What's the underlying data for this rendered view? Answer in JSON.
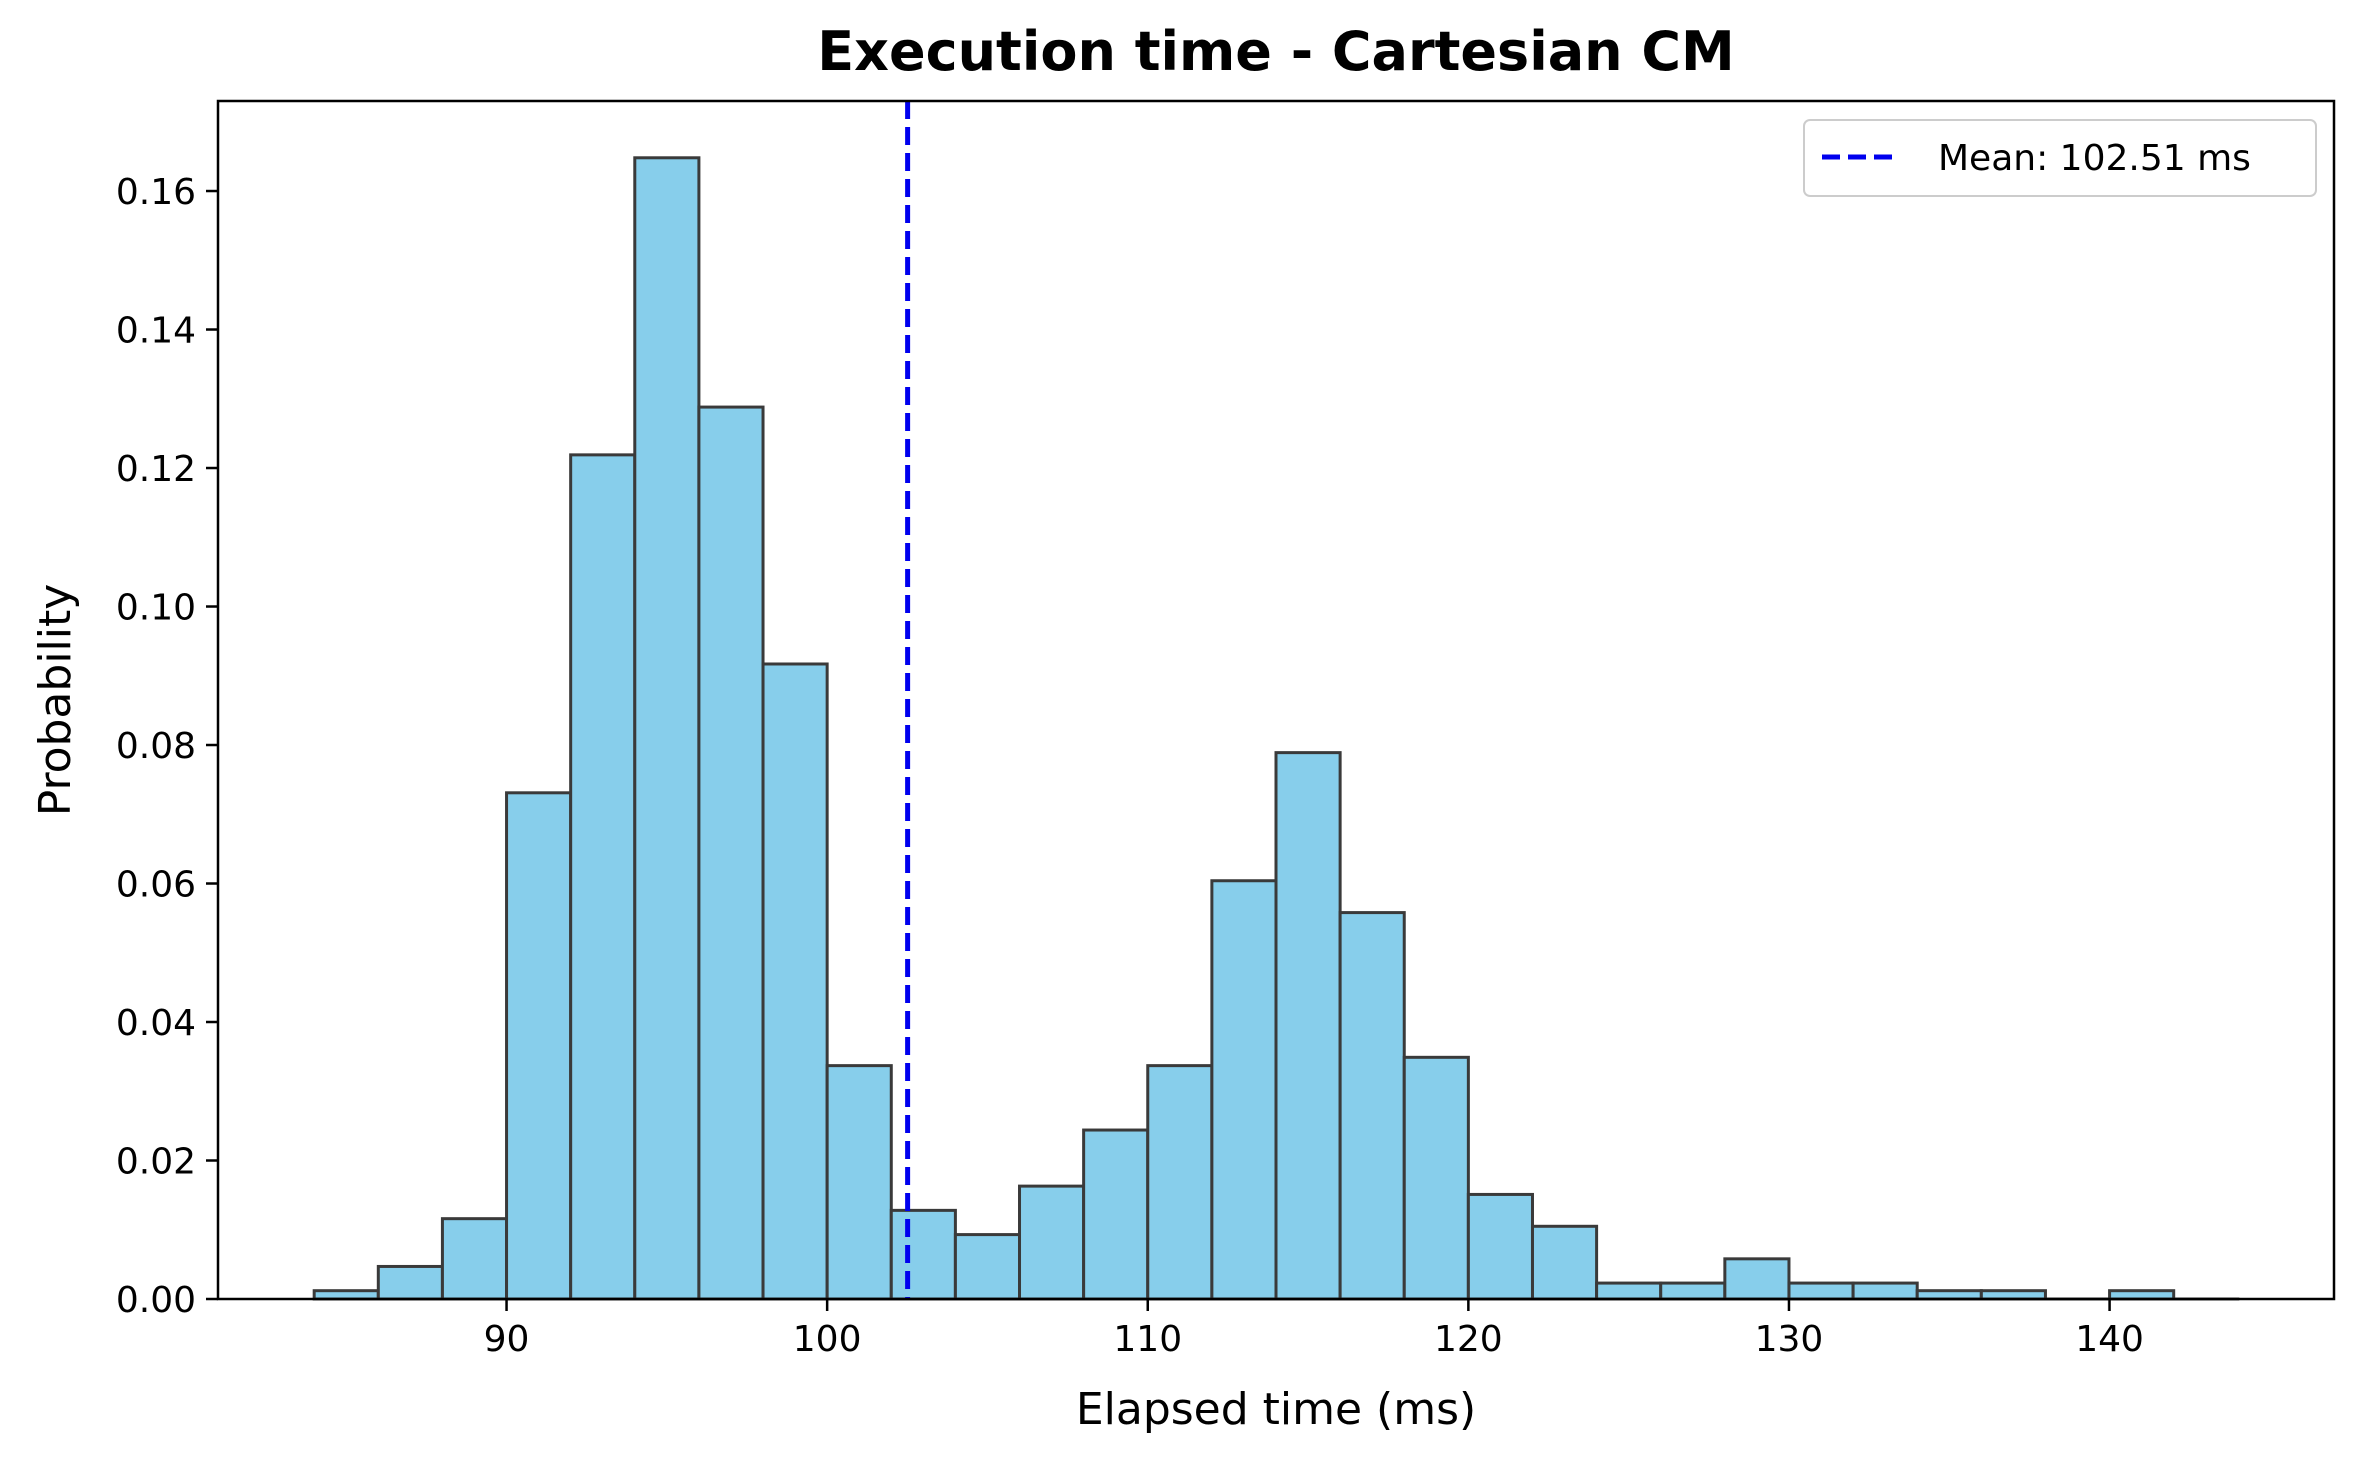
{
  "chart_data": {
    "type": "histogram",
    "title": "Execution time - Cartesian CM",
    "xlabel": "Elapsed time (ms)",
    "ylabel": "Probability",
    "xlim": [
      81,
      147
    ],
    "ylim": [
      0,
      0.173
    ],
    "x_ticks": [
      90,
      100,
      110,
      120,
      130,
      140
    ],
    "y_ticks": [
      0.0,
      0.02,
      0.04,
      0.06,
      0.08,
      0.1,
      0.12,
      0.14,
      0.16
    ],
    "y_tick_labels": [
      "0.00",
      "0.02",
      "0.04",
      "0.06",
      "0.08",
      "0.10",
      "0.12",
      "0.14",
      "0.16"
    ],
    "bin_width": 2,
    "bins": [
      {
        "x0": 84,
        "value": 0.0012
      },
      {
        "x0": 86,
        "value": 0.0047
      },
      {
        "x0": 88,
        "value": 0.0116
      },
      {
        "x0": 90,
        "value": 0.0731
      },
      {
        "x0": 92,
        "value": 0.1219
      },
      {
        "x0": 94,
        "value": 0.1648
      },
      {
        "x0": 96,
        "value": 0.1288
      },
      {
        "x0": 98,
        "value": 0.0917
      },
      {
        "x0": 100,
        "value": 0.0337
      },
      {
        "x0": 102,
        "value": 0.0128
      },
      {
        "x0": 104,
        "value": 0.0093
      },
      {
        "x0": 106,
        "value": 0.0163
      },
      {
        "x0": 108,
        "value": 0.0244
      },
      {
        "x0": 110,
        "value": 0.0337
      },
      {
        "x0": 112,
        "value": 0.0604
      },
      {
        "x0": 114,
        "value": 0.0789
      },
      {
        "x0": 116,
        "value": 0.0558
      },
      {
        "x0": 118,
        "value": 0.0349
      },
      {
        "x0": 120,
        "value": 0.0151
      },
      {
        "x0": 122,
        "value": 0.0105
      },
      {
        "x0": 124,
        "value": 0.0023
      },
      {
        "x0": 126,
        "value": 0.0023
      },
      {
        "x0": 128,
        "value": 0.0058
      },
      {
        "x0": 130,
        "value": 0.0023
      },
      {
        "x0": 132,
        "value": 0.0023
      },
      {
        "x0": 134,
        "value": 0.0012
      },
      {
        "x0": 136,
        "value": 0.0012
      },
      {
        "x0": 138,
        "value": 0.0
      },
      {
        "x0": 140,
        "value": 0.0012
      },
      {
        "x0": 142,
        "value": 0.0
      }
    ],
    "mean": 102.51,
    "mean_label": "Mean: 102.51 ms",
    "legend_position": "top-right",
    "grid": false,
    "colors": {
      "bar_fill": "#87CEEB",
      "bar_edge": "#3a3a3a",
      "mean_line": "#0000ee",
      "axis": "#000000"
    }
  }
}
